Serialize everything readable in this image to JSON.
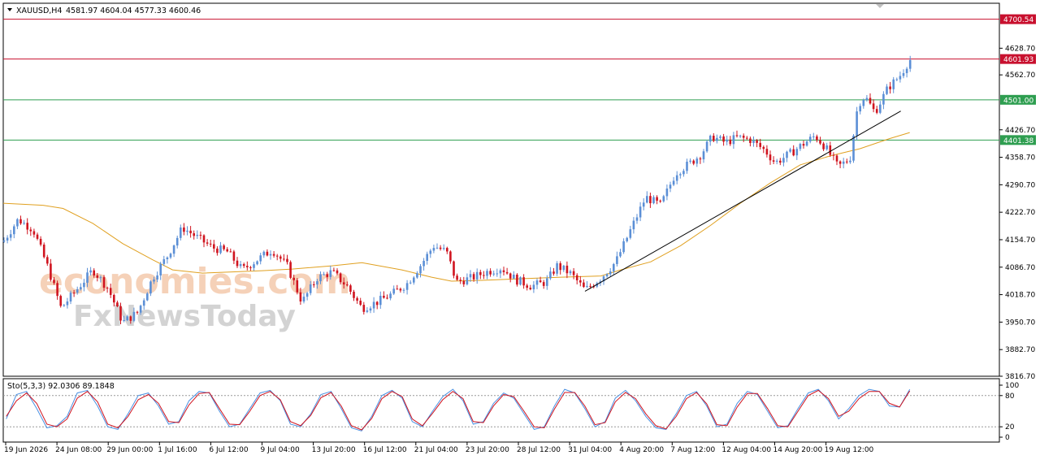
{
  "header": {
    "symbol": "XAUUSD,H4",
    "ohlc": "4581.97 4604.04 4577.33 4600.46"
  },
  "watermark": {
    "line1": "economies.com",
    "line2": "FxNewsToday"
  },
  "colors": {
    "bull": "#5b8fd6",
    "bear": "#d0141f",
    "ma": "#e0a020",
    "resistance": "#c8102e",
    "support": "#2e9e50",
    "trendline": "#000000",
    "stoch_main": "#4a90e2",
    "stoch_signal": "#d0141f"
  },
  "chart_data": [
    {
      "type": "candlestick",
      "symbol": "XAUUSD",
      "timeframe": "H4",
      "ylim": [
        3816.7,
        4740.0
      ],
      "y_ticks": [
        "4628.70",
        "4562.70",
        "4426.70",
        "4358.70",
        "4290.70",
        "4222.70",
        "4154.70",
        "4086.70",
        "4018.70",
        "3950.70",
        "3882.70",
        "3816.70"
      ],
      "x_ticks": [
        "19 Jun 2026",
        "24 Jun 08:00",
        "29 Jun 00:00",
        "1 Jul 16:00",
        "6 Jul 12:00",
        "9 Jul 04:00",
        "13 Jul 20:00",
        "16 Jul 12:00",
        "21 Jul 04:00",
        "23 Jul 20:00",
        "28 Jul 12:00",
        "31 Jul 04:00",
        "4 Aug 20:00",
        "7 Aug 12:00",
        "12 Aug 04:00",
        "14 Aug 20:00",
        "19 Aug 12:00"
      ],
      "levels": [
        {
          "label": "4700.54",
          "value": 4700.54,
          "kind": "resistance"
        },
        {
          "label": "4601.93",
          "value": 4601.93,
          "kind": "resistance"
        },
        {
          "label": "4501.00",
          "value": 4501.0,
          "kind": "support"
        },
        {
          "label": "4401.38",
          "value": 4401.38,
          "kind": "support"
        }
      ],
      "trendline": {
        "x": [
          0.584,
          0.901
        ],
        "y": [
          4027,
          4473
        ]
      },
      "price_path": [
        [
          0.0,
          4150
        ],
        [
          0.015,
          4205
        ],
        [
          0.03,
          4180
        ],
        [
          0.045,
          4085
        ],
        [
          0.058,
          3985
        ],
        [
          0.075,
          4035
        ],
        [
          0.09,
          4080
        ],
        [
          0.105,
          4035
        ],
        [
          0.12,
          3950
        ],
        [
          0.135,
          3975
        ],
        [
          0.15,
          4060
        ],
        [
          0.165,
          4115
        ],
        [
          0.18,
          4185
        ],
        [
          0.195,
          4160
        ],
        [
          0.21,
          4135
        ],
        [
          0.225,
          4125
        ],
        [
          0.24,
          4080
        ],
        [
          0.255,
          4105
        ],
        [
          0.27,
          4130
        ],
        [
          0.285,
          4090
        ],
        [
          0.3,
          4000
        ],
        [
          0.315,
          4060
        ],
        [
          0.33,
          4075
        ],
        [
          0.345,
          4040
        ],
        [
          0.36,
          3985
        ],
        [
          0.375,
          4000
        ],
        [
          0.39,
          4020
        ],
        [
          0.405,
          4045
        ],
        [
          0.42,
          4095
        ],
        [
          0.432,
          4140
        ],
        [
          0.445,
          4125
        ],
        [
          0.455,
          4050
        ],
        [
          0.47,
          4060
        ],
        [
          0.485,
          4075
        ],
        [
          0.5,
          4085
        ],
        [
          0.515,
          4055
        ],
        [
          0.53,
          4040
        ],
        [
          0.545,
          4050
        ],
        [
          0.556,
          4090
        ],
        [
          0.57,
          4070
        ],
        [
          0.584,
          4030
        ],
        [
          0.6,
          4060
        ],
        [
          0.615,
          4100
        ],
        [
          0.63,
          4180
        ],
        [
          0.645,
          4260
        ],
        [
          0.66,
          4240
        ],
        [
          0.675,
          4320
        ],
        [
          0.69,
          4345
        ],
        [
          0.7,
          4365
        ],
        [
          0.712,
          4410
        ],
        [
          0.725,
          4395
        ],
        [
          0.737,
          4408
        ],
        [
          0.75,
          4402
        ],
        [
          0.765,
          4375
        ],
        [
          0.775,
          4345
        ],
        [
          0.79,
          4368
        ],
        [
          0.805,
          4395
        ],
        [
          0.815,
          4412
        ],
        [
          0.825,
          4385
        ],
        [
          0.838,
          4335
        ],
        [
          0.85,
          4355
        ],
        [
          0.858,
          4490
        ],
        [
          0.865,
          4510
        ],
        [
          0.875,
          4470
        ],
        [
          0.888,
          4530
        ],
        [
          0.9,
          4560
        ],
        [
          0.91,
          4600
        ]
      ],
      "ma_path": [
        [
          0.0,
          4245
        ],
        [
          0.04,
          4240
        ],
        [
          0.06,
          4232
        ],
        [
          0.09,
          4195
        ],
        [
          0.12,
          4145
        ],
        [
          0.15,
          4105
        ],
        [
          0.17,
          4080
        ],
        [
          0.2,
          4072
        ],
        [
          0.23,
          4075
        ],
        [
          0.26,
          4078
        ],
        [
          0.29,
          4082
        ],
        [
          0.33,
          4090
        ],
        [
          0.36,
          4098
        ],
        [
          0.4,
          4080
        ],
        [
          0.43,
          4062
        ],
        [
          0.45,
          4052
        ],
        [
          0.48,
          4054
        ],
        [
          0.52,
          4058
        ],
        [
          0.56,
          4062
        ],
        [
          0.6,
          4065
        ],
        [
          0.62,
          4080
        ],
        [
          0.65,
          4100
        ],
        [
          0.68,
          4140
        ],
        [
          0.71,
          4190
        ],
        [
          0.74,
          4245
        ],
        [
          0.77,
          4295
        ],
        [
          0.8,
          4340
        ],
        [
          0.83,
          4362
        ],
        [
          0.86,
          4380
        ],
        [
          0.89,
          4405
        ],
        [
          0.91,
          4420
        ]
      ]
    },
    {
      "type": "line",
      "title": "Sto(5,3,3) 92.0306 89.1848",
      "ylim": [
        0,
        100
      ],
      "y_ticks": [
        "100",
        "80",
        "20",
        "0"
      ],
      "levels": [
        80,
        20
      ],
      "series": [
        {
          "name": "main",
          "values": [
            35,
            82,
            88,
            55,
            18,
            22,
            40,
            85,
            90,
            60,
            20,
            15,
            45,
            80,
            85,
            60,
            25,
            30,
            70,
            88,
            85,
            50,
            20,
            25,
            55,
            85,
            90,
            70,
            25,
            20,
            45,
            82,
            88,
            55,
            18,
            12,
            40,
            80,
            90,
            75,
            30,
            20,
            50,
            78,
            92,
            70,
            25,
            30,
            65,
            85,
            75,
            45,
            15,
            20,
            60,
            92,
            85,
            55,
            20,
            30,
            75,
            90,
            70,
            40,
            18,
            15,
            45,
            80,
            88,
            60,
            20,
            25,
            65,
            88,
            82,
            50,
            18,
            22,
            55,
            85,
            92,
            70,
            35,
            55,
            80,
            92,
            88,
            60,
            58,
            92
          ]
        },
        {
          "name": "signal",
          "values": [
            40,
            70,
            85,
            65,
            25,
            20,
            35,
            75,
            88,
            68,
            25,
            18,
            40,
            72,
            82,
            65,
            30,
            28,
            62,
            84,
            86,
            55,
            25,
            24,
            50,
            80,
            88,
            72,
            30,
            22,
            42,
            76,
            86,
            60,
            22,
            14,
            36,
            74,
            88,
            78,
            35,
            22,
            46,
            72,
            88,
            74,
            30,
            28,
            60,
            82,
            78,
            50,
            20,
            18,
            54,
            86,
            86,
            60,
            24,
            28,
            68,
            86,
            74,
            45,
            22,
            16,
            40,
            74,
            86,
            64,
            24,
            22,
            58,
            84,
            84,
            55,
            22,
            20,
            50,
            80,
            90,
            74,
            40,
            50,
            74,
            88,
            88,
            65,
            58,
            89
          ]
        }
      ]
    }
  ]
}
